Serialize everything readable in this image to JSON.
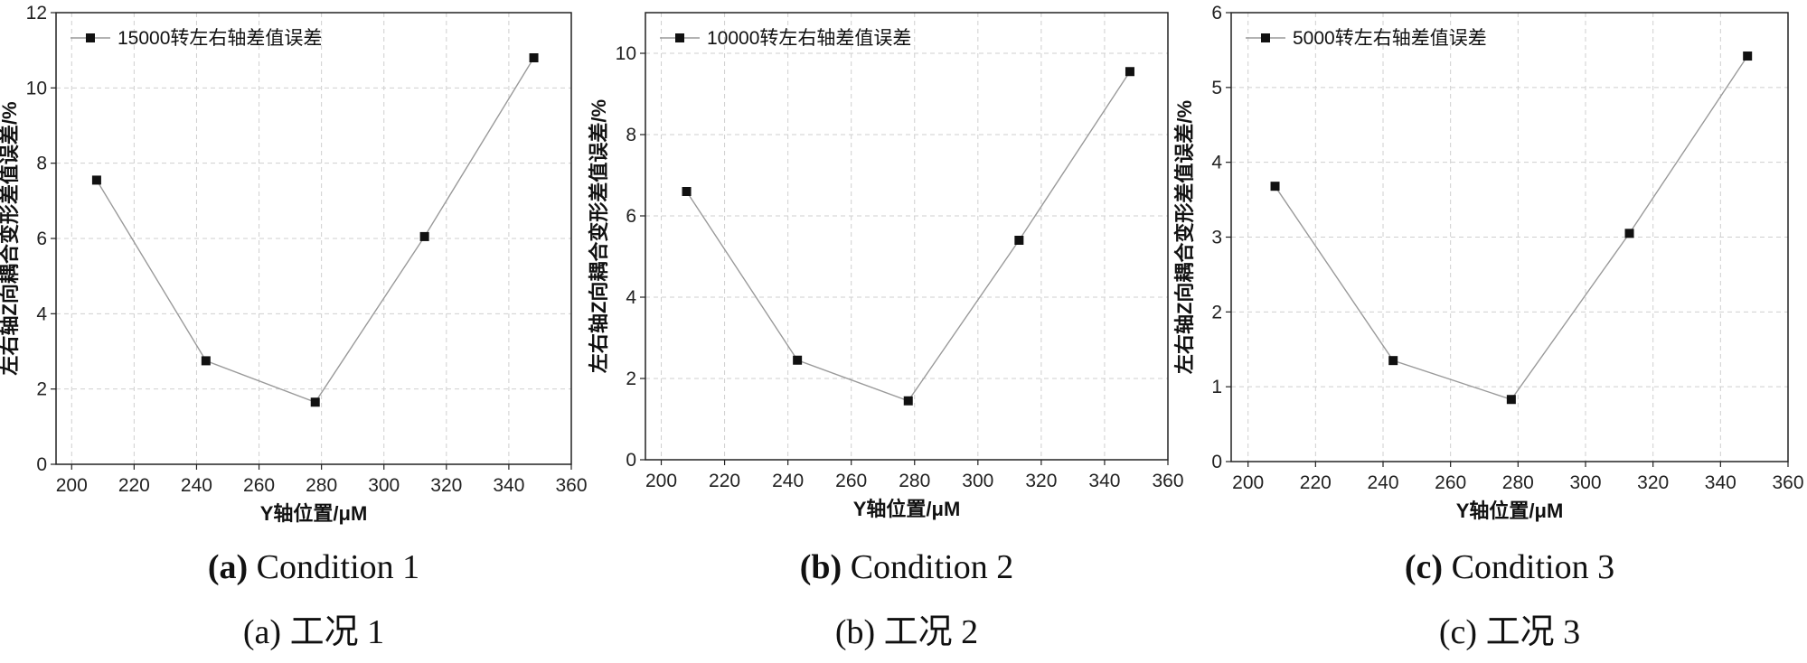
{
  "chart_data": [
    {
      "type": "line",
      "panel_label": "(a)",
      "caption_en": "Condition 1",
      "caption_cn": "(a)  工况 1",
      "xlabel": "Y轴位置/μM",
      "ylabel": "左右轴Z向耦合变形差值误差/%",
      "xlim": [
        195,
        360
      ],
      "ylim": [
        0,
        12
      ],
      "xticks": [
        200,
        220,
        240,
        260,
        280,
        300,
        320,
        340,
        360
      ],
      "yticks": [
        0,
        2,
        4,
        6,
        8,
        10,
        12
      ],
      "grid": true,
      "legend_position": "top-left",
      "series": [
        {
          "name": "15000转左右轴差值误差",
          "x": [
            208,
            243,
            278,
            313,
            348
          ],
          "values": [
            7.55,
            2.75,
            1.65,
            6.05,
            10.8
          ]
        }
      ]
    },
    {
      "type": "line",
      "panel_label": "(b)",
      "caption_en": "Condition 2",
      "caption_cn": "(b)  工况 2",
      "xlabel": "Y轴位置/μM",
      "ylabel": "左右轴Z向耦合变形差值误差/%",
      "xlim": [
        195,
        360
      ],
      "ylim": [
        0,
        11
      ],
      "xticks": [
        200,
        220,
        240,
        260,
        280,
        300,
        320,
        340,
        360
      ],
      "yticks": [
        0,
        2,
        4,
        6,
        8,
        10
      ],
      "grid": true,
      "legend_position": "top-left",
      "series": [
        {
          "name": "10000转左右轴差值误差",
          "x": [
            208,
            243,
            278,
            313,
            348
          ],
          "values": [
            6.6,
            2.45,
            1.45,
            5.4,
            9.55
          ]
        }
      ]
    },
    {
      "type": "line",
      "panel_label": "(c)",
      "caption_en": "Condition 3",
      "caption_cn": "(c)  工况 3",
      "xlabel": "Y轴位置/μM",
      "ylabel": "左右轴Z向耦合变形差值误差/%",
      "xlim": [
        195,
        360
      ],
      "ylim": [
        0,
        6
      ],
      "xticks": [
        200,
        220,
        240,
        260,
        280,
        300,
        320,
        340,
        360
      ],
      "yticks": [
        0,
        1,
        2,
        3,
        4,
        5,
        6
      ],
      "grid": true,
      "legend_position": "top-left",
      "series": [
        {
          "name": "5000转左右轴差值误差",
          "x": [
            208,
            243,
            278,
            313,
            348
          ],
          "values": [
            3.68,
            1.35,
            0.83,
            3.05,
            5.42
          ]
        }
      ]
    }
  ],
  "colors": {
    "line": "#9a9a9a",
    "marker": "#111111",
    "grid": "#cfcfcf",
    "frame": "#222222"
  }
}
